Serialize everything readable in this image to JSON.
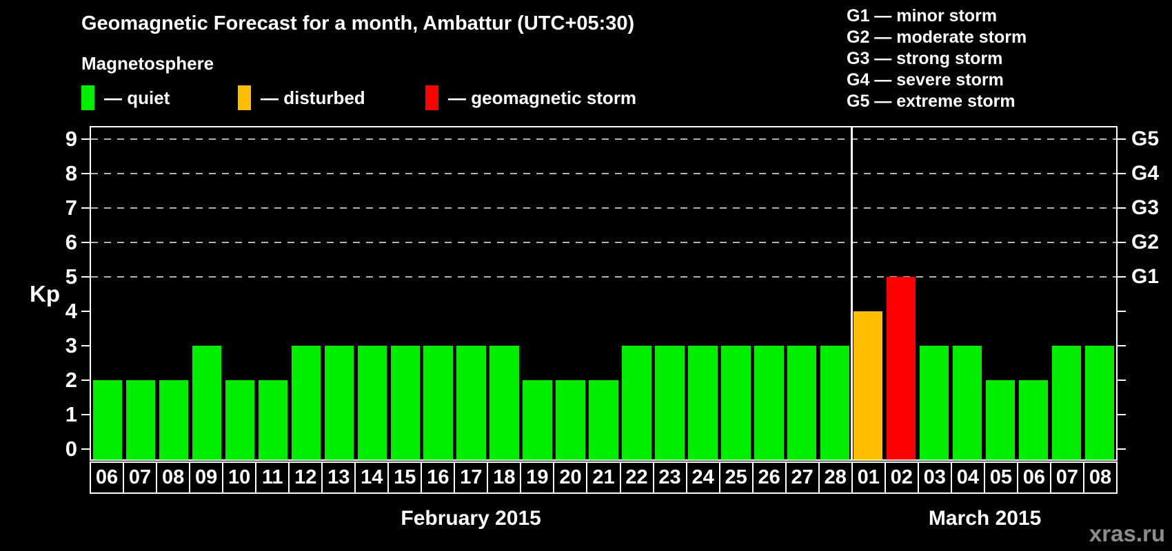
{
  "header": {
    "title": "Geomagnetic Forecast for a month, Ambattur (UTC+05:30)",
    "legend_title": "Magnetosphere"
  },
  "legend": {
    "items": [
      {
        "name": "quiet",
        "label": "— quiet",
        "color": "#00ee00"
      },
      {
        "name": "disturbed",
        "label": "— disturbed",
        "color": "#ffbf00"
      },
      {
        "name": "storm",
        "label": "— geomagnetic storm",
        "color": "#ff0000"
      }
    ]
  },
  "g_legend": [
    "G1 — minor storm",
    "G2 — moderate storm",
    "G3 — strong storm",
    "G4 — severe storm",
    "G5 — extreme storm"
  ],
  "y_axis": {
    "title": "Kp"
  },
  "watermark": "xras.ru",
  "chart_data": {
    "type": "bar",
    "title": "Geomagnetic Forecast for a month, Ambattur (UTC+05:30)",
    "ylabel": "Kp",
    "ylim": [
      -0.3,
      9.35
    ],
    "y_ticks": [
      0,
      1,
      2,
      3,
      4,
      5,
      6,
      7,
      8,
      9
    ],
    "gridlines_at": [
      5,
      6,
      7,
      8,
      9
    ],
    "grid_color": "#b2b2b2",
    "legend_position": "top-left",
    "categories": [
      "06",
      "07",
      "08",
      "09",
      "10",
      "11",
      "12",
      "13",
      "14",
      "15",
      "16",
      "17",
      "18",
      "19",
      "20",
      "21",
      "22",
      "23",
      "24",
      "25",
      "26",
      "27",
      "28",
      "01",
      "02",
      "03",
      "04",
      "05",
      "06",
      "07",
      "08"
    ],
    "series": [
      {
        "name": "Kp forecast",
        "values": [
          2,
          2,
          2,
          3,
          2,
          2,
          3,
          3,
          3,
          3,
          3,
          3,
          3,
          2,
          2,
          2,
          3,
          3,
          3,
          3,
          3,
          3,
          3,
          4,
          5,
          3,
          3,
          2,
          2,
          3,
          3
        ],
        "statuses": [
          "quiet",
          "quiet",
          "quiet",
          "quiet",
          "quiet",
          "quiet",
          "quiet",
          "quiet",
          "quiet",
          "quiet",
          "quiet",
          "quiet",
          "quiet",
          "quiet",
          "quiet",
          "quiet",
          "quiet",
          "quiet",
          "quiet",
          "quiet",
          "quiet",
          "quiet",
          "quiet",
          "disturbed",
          "storm",
          "quiet",
          "quiet",
          "quiet",
          "quiet",
          "quiet",
          "quiet"
        ]
      }
    ],
    "status_colors": {
      "quiet": "#00ee00",
      "disturbed": "#ffbf00",
      "storm": "#ff0000"
    },
    "right_axis_labels": [
      {
        "kp": 5,
        "label": "G1"
      },
      {
        "kp": 6,
        "label": "G2"
      },
      {
        "kp": 7,
        "label": "G3"
      },
      {
        "kp": 8,
        "label": "G4"
      },
      {
        "kp": 9,
        "label": "G5"
      }
    ],
    "month_spans": [
      {
        "label": "February 2015",
        "count": 23
      },
      {
        "label": "March 2015",
        "count": 8
      }
    ]
  }
}
